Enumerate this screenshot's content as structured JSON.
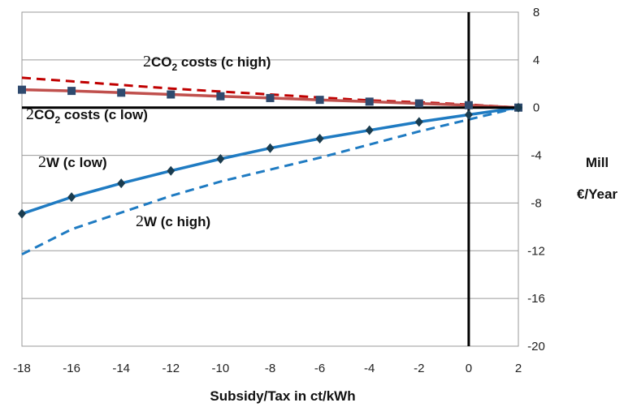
{
  "chart_data": {
    "type": "line",
    "xlabel": "Subsidy/Tax in ct/kWh",
    "ylabel_line1": "Mill",
    "ylabel_line2": "€/Year",
    "x": [
      -18,
      -16,
      -14,
      -12,
      -10,
      -8,
      -6,
      -4,
      -2,
      0,
      2
    ],
    "xticks": [
      -18,
      -16,
      -14,
      -12,
      -10,
      -8,
      -6,
      -4,
      -2,
      0,
      2
    ],
    "xlim": [
      -18,
      2
    ],
    "yticks": [
      8,
      4,
      0,
      -4,
      -8,
      -12,
      -16,
      -20
    ],
    "ylim": [
      -20,
      8
    ],
    "grid": true,
    "y_axis_position": "right",
    "reference_lines": [
      {
        "axis": "x",
        "value": 0
      },
      {
        "axis": "y",
        "value": 0
      }
    ],
    "series": [
      {
        "values": [
          2.5,
          2.2,
          1.9,
          1.6,
          1.35,
          1.1,
          0.85,
          0.6,
          0.45,
          0.25,
          0.0
        ],
        "color": "#c00000",
        "dash": true,
        "marker": "none"
      },
      {
        "values": [
          1.5,
          1.4,
          1.25,
          1.1,
          0.95,
          0.8,
          0.65,
          0.5,
          0.35,
          0.2,
          0.0
        ],
        "color": "#c0504d",
        "dash": false,
        "marker": "square",
        "marker_color": "#2f4a6e"
      },
      {
        "values": [
          -8.9,
          -7.5,
          -6.35,
          -5.3,
          -4.3,
          -3.4,
          -2.6,
          -1.9,
          -1.2,
          -0.6,
          0.0
        ],
        "color": "#1f7bc2",
        "dash": false,
        "marker": "diamond",
        "marker_color": "#1a3c4f"
      },
      {
        "values": [
          -12.3,
          -10.2,
          -8.8,
          -7.4,
          -6.2,
          -5.2,
          -4.2,
          -3.1,
          -2.0,
          -1.0,
          0.0
        ],
        "color": "#1f7bc2",
        "dash": true,
        "marker": "none"
      }
    ],
    "annotations": [
      {
        "symbol": "2",
        "text": "CO",
        "sub": "2",
        "tail": " costs (c high)"
      },
      {
        "symbol": "2",
        "text": "CO",
        "sub": "2",
        "tail": " costs (c low)"
      },
      {
        "symbol": "2",
        "text": "W (c low)",
        "sub": "",
        "tail": ""
      },
      {
        "symbol": "2",
        "text": "W (c high)",
        "sub": "",
        "tail": ""
      }
    ]
  }
}
